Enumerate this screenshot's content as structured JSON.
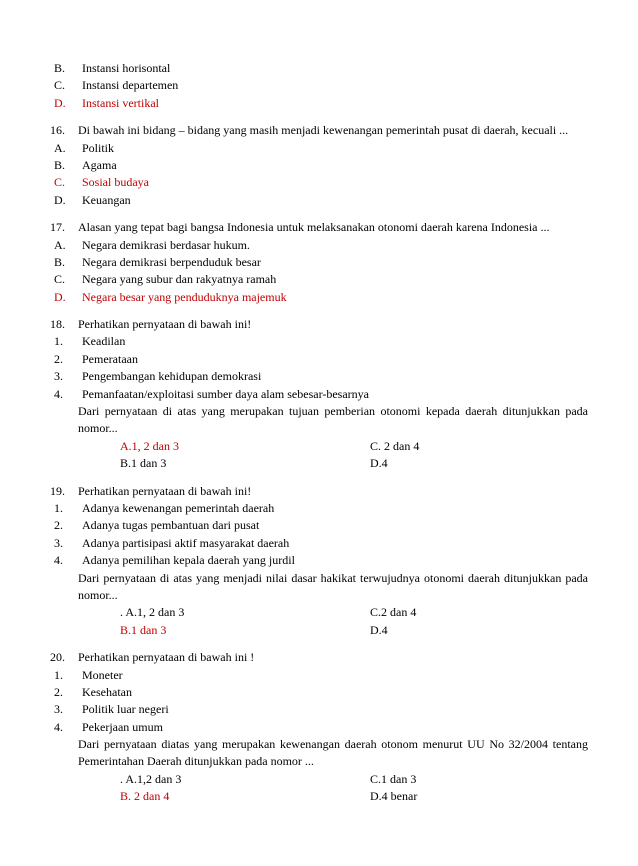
{
  "frag15": {
    "b": {
      "m": "B.",
      "t": "Instansi horisontal"
    },
    "c": {
      "m": "C.",
      "t": "Instansi departemen"
    },
    "d": {
      "m": "D.",
      "t": "Instansi vertikal"
    }
  },
  "q16": {
    "q": {
      "m": "16.",
      "t": "  Di bawah ini bidang – bidang yang masih menjadi kewenangan pemerintah pusat di daerah, kecuali ..."
    },
    "a": {
      "m": "A.",
      "t": "Politik"
    },
    "b": {
      "m": "B.",
      "t": "Agama"
    },
    "c": {
      "m": "C.",
      "t": "Sosial budaya"
    },
    "d": {
      "m": "D.",
      "t": "Keuangan"
    }
  },
  "q17": {
    "q": {
      "m": "17.",
      "t": "  Alasan yang tepat bagi bangsa Indonesia untuk melaksanakan otonomi daerah karena Indonesia ..."
    },
    "a": {
      "m": "A.",
      "t": "Negara demikrasi berdasar hukum."
    },
    "b": {
      "m": "B.",
      "t": "Negara demikrasi berpenduduk besar"
    },
    "c": {
      "m": "C.",
      "t": "Negara yang subur dan rakyatnya ramah"
    },
    "d": {
      "m": "D.",
      "t": "Negara besar yang penduduknya majemuk"
    }
  },
  "q18": {
    "q": {
      "m": "18.",
      "t": "   Perhatikan pernyataan di bawah ini!"
    },
    "i1": {
      "m": "1.",
      "t": "Keadilan"
    },
    "i2": {
      "m": "2.",
      "t": "Pemerataan"
    },
    "i3": {
      "m": "3.",
      "t": "Pengembangan kehidupan demokrasi"
    },
    "i4": {
      "m": "4.",
      "t": "Pemanfaatan/exploitasi sumber daya alam sebesar-besarnya"
    },
    "stem": "Dari pernyataan di atas yang merupakan tujuan pemberian otonomi kepada daerah   ditunjukkan pada nomor...",
    "optA": "A.1, 2 dan 3",
    "optB": "B.1 dan 3",
    "optC": "C. 2 dan 4",
    "optD": "D.4"
  },
  "q19": {
    "q": {
      "m": "19.",
      "t": "   Perhatikan pernyataan di bawah ini!"
    },
    "i1": {
      "m": "1.",
      "t": "Adanya kewenangan pemerintah daerah"
    },
    "i2": {
      "m": "2.",
      "t": "Adanya tugas pembantuan dari pusat"
    },
    "i3": {
      "m": "3.",
      "t": "Adanya partisipasi aktif masyarakat daerah"
    },
    "i4": {
      "m": "4.",
      "t": "Adanya pemilihan kepala daerah yang jurdil"
    },
    "stem": "Dari pernyataan di atas yang menjadi nilai dasar hakikat terwujudnya otonomi daerah ditunjukkan pada nomor...",
    "optA": ". A.1, 2 dan 3",
    "optB": "B.1 dan 3",
    "optC": "C.2 dan 4",
    "optD": "D.4"
  },
  "q20": {
    "q": {
      "m": "20.",
      "t": "  Perhatikan pernyataan di bawah ini !"
    },
    "i1": {
      "m": "1.",
      "t": "Moneter"
    },
    "i2": {
      "m": "2.",
      "t": "Kesehatan"
    },
    "i3": {
      "m": "3.",
      "t": "Politik luar negeri"
    },
    "i4": {
      "m": "4.",
      "t": "Pekerjaan umum"
    },
    "stem": "Dari pernyataan diatas yang merupakan kewenangan daerah otonom menurut UU No 32/2004 tentang Pemerintahan Daerah ditunjukkan pada nomor ...",
    "optA": ". A.1,2 dan 3",
    "optB": "B. 2 dan 4",
    "optC": "C.1 dan 3",
    "optD": "D.4 benar"
  }
}
